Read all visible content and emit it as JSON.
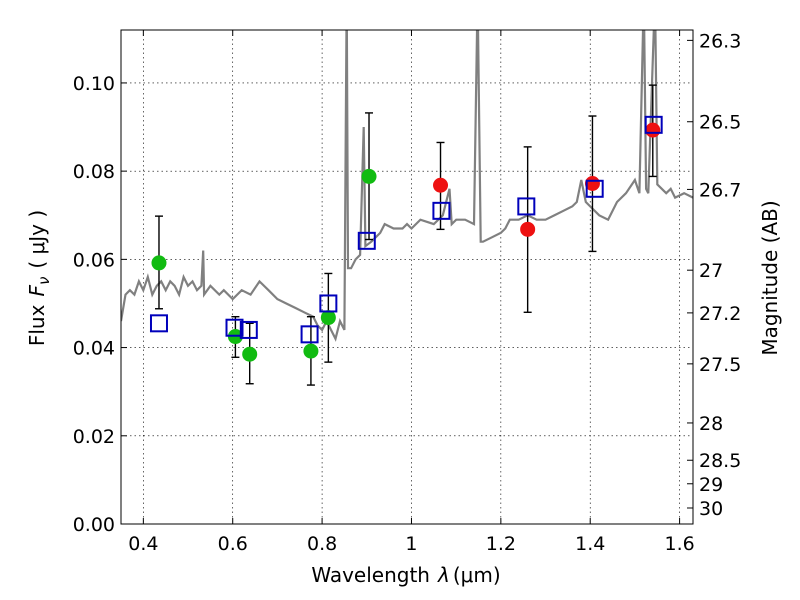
{
  "chart_data": {
    "type": "scatter",
    "xlabel": "Wavelength",
    "xlabel_symbol": "λ",
    "xlabel_unit": "(μm)",
    "ylabel": "Flux",
    "ylabel_symbol": "F",
    "ylabel_subscript": "ν",
    "ylabel_unit": "( μJy )",
    "y2label": "Magnitude (AB)",
    "xlim": [
      0.35,
      1.63
    ],
    "ylim": [
      0.0,
      0.112
    ],
    "grid": true,
    "xticks": [
      0.4,
      0.6,
      0.8,
      1.0,
      1.2,
      1.4,
      1.6
    ],
    "xtick_labels": [
      "0.4",
      "0.6",
      "0.8",
      "1",
      "1.2",
      "1.4",
      "1.6"
    ],
    "yticks": [
      0.0,
      0.02,
      0.04,
      0.06,
      0.08,
      0.1
    ],
    "ytick_labels": [
      "0.00",
      "0.02",
      "0.04",
      "0.06",
      "0.08",
      "0.10"
    ],
    "mag_ticks": [
      "26.3",
      "26.5",
      "26.7",
      "27",
      "27.2",
      "27.5",
      "28",
      "28.5",
      "29",
      "30"
    ],
    "colors": {
      "detection": "#11bb11",
      "red": "#ee1111",
      "model": "#0000bb",
      "spectrum": "#808080",
      "errorbar": "#000000"
    },
    "points": [
      {
        "x": 0.435,
        "y": 0.0592,
        "err": [
          0.0488,
          0.0698
        ],
        "color": "detection"
      },
      {
        "x": 0.606,
        "y": 0.0425,
        "err": [
          0.0378,
          0.047
        ],
        "color": "detection"
      },
      {
        "x": 0.638,
        "y": 0.0385,
        "err": [
          0.0318,
          0.0455
        ],
        "color": "detection"
      },
      {
        "x": 0.775,
        "y": 0.0392,
        "err": [
          0.0315,
          0.047
        ],
        "color": "detection"
      },
      {
        "x": 0.814,
        "y": 0.0468,
        "err": [
          0.0367,
          0.0568
        ],
        "color": "detection"
      },
      {
        "x": 0.905,
        "y": 0.0788,
        "err": [
          0.0645,
          0.0932
        ],
        "color": "detection"
      },
      {
        "x": 1.065,
        "y": 0.0768,
        "err": [
          0.0668,
          0.0865
        ],
        "color": "red"
      },
      {
        "x": 1.26,
        "y": 0.0668,
        "err": [
          0.048,
          0.0855
        ],
        "color": "red"
      },
      {
        "x": 1.405,
        "y": 0.0772,
        "err": [
          0.0618,
          0.0925
        ],
        "color": "red"
      },
      {
        "x": 1.54,
        "y": 0.0893,
        "err": [
          0.0788,
          0.0995
        ],
        "color": "red"
      }
    ],
    "model_squares": [
      {
        "x": 0.435,
        "y": 0.0455
      },
      {
        "x": 0.604,
        "y": 0.0445
      },
      {
        "x": 0.636,
        "y": 0.044
      },
      {
        "x": 0.772,
        "y": 0.043
      },
      {
        "x": 0.814,
        "y": 0.05
      },
      {
        "x": 0.9,
        "y": 0.0642
      },
      {
        "x": 1.067,
        "y": 0.071
      },
      {
        "x": 1.257,
        "y": 0.072
      },
      {
        "x": 1.41,
        "y": 0.076
      },
      {
        "x": 1.542,
        "y": 0.0905
      }
    ],
    "spectrum": [
      [
        0.35,
        0.046
      ],
      [
        0.36,
        0.052
      ],
      [
        0.37,
        0.053
      ],
      [
        0.38,
        0.052
      ],
      [
        0.39,
        0.055
      ],
      [
        0.4,
        0.053
      ],
      [
        0.41,
        0.056
      ],
      [
        0.42,
        0.052
      ],
      [
        0.43,
        0.054
      ],
      [
        0.44,
        0.055
      ],
      [
        0.45,
        0.053
      ],
      [
        0.46,
        0.055
      ],
      [
        0.47,
        0.054
      ],
      [
        0.48,
        0.052
      ],
      [
        0.49,
        0.056
      ],
      [
        0.5,
        0.054
      ],
      [
        0.51,
        0.055
      ],
      [
        0.52,
        0.053
      ],
      [
        0.53,
        0.054
      ],
      [
        0.534,
        0.062
      ],
      [
        0.536,
        0.052
      ],
      [
        0.55,
        0.054
      ],
      [
        0.57,
        0.052
      ],
      [
        0.58,
        0.053
      ],
      [
        0.6,
        0.051
      ],
      [
        0.62,
        0.053
      ],
      [
        0.64,
        0.052
      ],
      [
        0.66,
        0.055
      ],
      [
        0.68,
        0.053
      ],
      [
        0.7,
        0.051
      ],
      [
        0.72,
        0.05
      ],
      [
        0.74,
        0.049
      ],
      [
        0.76,
        0.048
      ],
      [
        0.78,
        0.047
      ],
      [
        0.79,
        0.045
      ],
      [
        0.8,
        0.044
      ],
      [
        0.81,
        0.046
      ],
      [
        0.82,
        0.044
      ],
      [
        0.83,
        0.042
      ],
      [
        0.84,
        0.046
      ],
      [
        0.85,
        0.044
      ],
      [
        0.855,
        0.12
      ],
      [
        0.858,
        0.058
      ],
      [
        0.865,
        0.058
      ],
      [
        0.875,
        0.06
      ],
      [
        0.885,
        0.061
      ],
      [
        0.893,
        0.09
      ],
      [
        0.897,
        0.063
      ],
      [
        0.91,
        0.064
      ],
      [
        0.93,
        0.066
      ],
      [
        0.94,
        0.068
      ],
      [
        0.96,
        0.067
      ],
      [
        0.98,
        0.067
      ],
      [
        0.99,
        0.068
      ],
      [
        1.0,
        0.067
      ],
      [
        1.02,
        0.069
      ],
      [
        1.05,
        0.068
      ],
      [
        1.07,
        0.07
      ],
      [
        1.085,
        0.076
      ],
      [
        1.09,
        0.068
      ],
      [
        1.1,
        0.069
      ],
      [
        1.12,
        0.069
      ],
      [
        1.14,
        0.068
      ],
      [
        1.148,
        0.12
      ],
      [
        1.155,
        0.064
      ],
      [
        1.16,
        0.064
      ],
      [
        1.18,
        0.065
      ],
      [
        1.2,
        0.066
      ],
      [
        1.21,
        0.067
      ],
      [
        1.22,
        0.069
      ],
      [
        1.24,
        0.069
      ],
      [
        1.26,
        0.07
      ],
      [
        1.28,
        0.069
      ],
      [
        1.3,
        0.069
      ],
      [
        1.32,
        0.07
      ],
      [
        1.34,
        0.071
      ],
      [
        1.36,
        0.072
      ],
      [
        1.37,
        0.073
      ],
      [
        1.38,
        0.078
      ],
      [
        1.39,
        0.073
      ],
      [
        1.4,
        0.072
      ],
      [
        1.42,
        0.07
      ],
      [
        1.44,
        0.069
      ],
      [
        1.46,
        0.073
      ],
      [
        1.48,
        0.075
      ],
      [
        1.5,
        0.078
      ],
      [
        1.51,
        0.075
      ],
      [
        1.52,
        0.12
      ],
      [
        1.525,
        0.076
      ],
      [
        1.53,
        0.075
      ],
      [
        1.545,
        0.12
      ],
      [
        1.55,
        0.077
      ],
      [
        1.57,
        0.075
      ],
      [
        1.58,
        0.076
      ],
      [
        1.59,
        0.074
      ],
      [
        1.61,
        0.075
      ],
      [
        1.63,
        0.074
      ]
    ]
  }
}
